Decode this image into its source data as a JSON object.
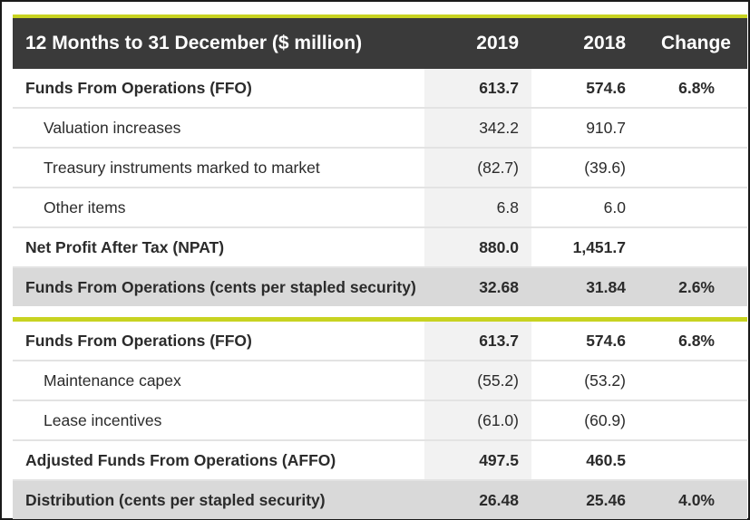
{
  "header": {
    "title": "12 Months to 31 December ($ million)",
    "col_2019": "2019",
    "col_2018": "2018",
    "col_change": "Change"
  },
  "section1": [
    {
      "label": "Funds From Operations (FFO)",
      "v2019": "613.7",
      "v2018": "574.6",
      "change": "6.8%"
    },
    {
      "label": "Valuation increases",
      "v2019": "342.2",
      "v2018": "910.7",
      "change": ""
    },
    {
      "label": "Treasury instruments marked to market",
      "v2019": "(82.7)",
      "v2018": "(39.6)",
      "change": ""
    },
    {
      "label": "Other items",
      "v2019": "6.8",
      "v2018": "6.0",
      "change": ""
    },
    {
      "label": "Net Profit After Tax (NPAT)",
      "v2019": "880.0",
      "v2018": "1,451.7",
      "change": ""
    },
    {
      "label": "Funds From Operations (cents per stapled security)",
      "v2019": "32.68",
      "v2018": "31.84",
      "change": "2.6%"
    }
  ],
  "section2": [
    {
      "label": "Funds From Operations (FFO)",
      "v2019": "613.7",
      "v2018": "574.6",
      "change": "6.8%"
    },
    {
      "label": "Maintenance capex",
      "v2019": "(55.2)",
      "v2018": "(53.2)",
      "change": ""
    },
    {
      "label": "Lease incentives",
      "v2019": "(61.0)",
      "v2018": "(60.9)",
      "change": ""
    },
    {
      "label": "Adjusted Funds From Operations (AFFO)",
      "v2019": "497.5",
      "v2018": "460.5",
      "change": ""
    },
    {
      "label": "Distribution (cents per stapled security)",
      "v2019": "26.48",
      "v2018": "25.46",
      "change": "4.0%"
    }
  ],
  "colors": {
    "accent": "#c8d321",
    "header_bg": "#3a3a3a",
    "shade": "#d9d9d9"
  }
}
